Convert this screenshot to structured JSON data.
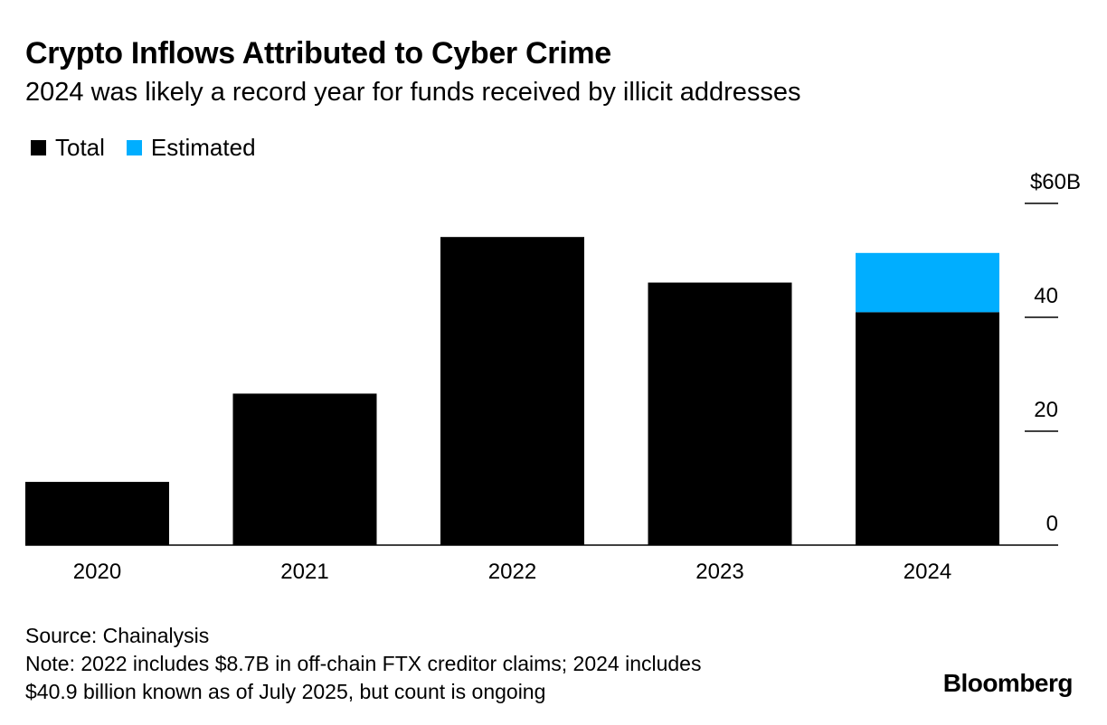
{
  "title": "Crypto Inflows Attributed to Cyber Crime",
  "subtitle": "2024 was likely a record year for funds received by illicit addresses",
  "legend": [
    {
      "label": "Total",
      "color": "#000000"
    },
    {
      "label": "Estimated",
      "color": "#00aeff"
    }
  ],
  "footer": {
    "source": "Source: Chainalysis",
    "note_line1": "Note: 2022 includes $8.7B in off-chain FTX creditor claims; 2024 includes",
    "note_line2": "$40.9 billion known as of July 2025, but count is ongoing"
  },
  "brand": "Bloomberg",
  "chart_data": {
    "type": "bar",
    "stacked": true,
    "categories": [
      "2020",
      "2021",
      "2022",
      "2023",
      "2024"
    ],
    "series": [
      {
        "name": "Total",
        "color": "#000000",
        "values": [
          11.1,
          26.6,
          54.1,
          46.1,
          40.9
        ]
      },
      {
        "name": "Estimated",
        "color": "#00aeff",
        "values": [
          0,
          0,
          0,
          0,
          10.4
        ]
      }
    ],
    "ylim": [
      0,
      60
    ],
    "yticks": [
      0,
      20,
      40,
      60
    ],
    "ytick_labels": [
      "0",
      "20",
      "40",
      "$60B"
    ],
    "xlabel": "",
    "ylabel": "",
    "axis_position": "right",
    "legend_position": "top-left"
  }
}
